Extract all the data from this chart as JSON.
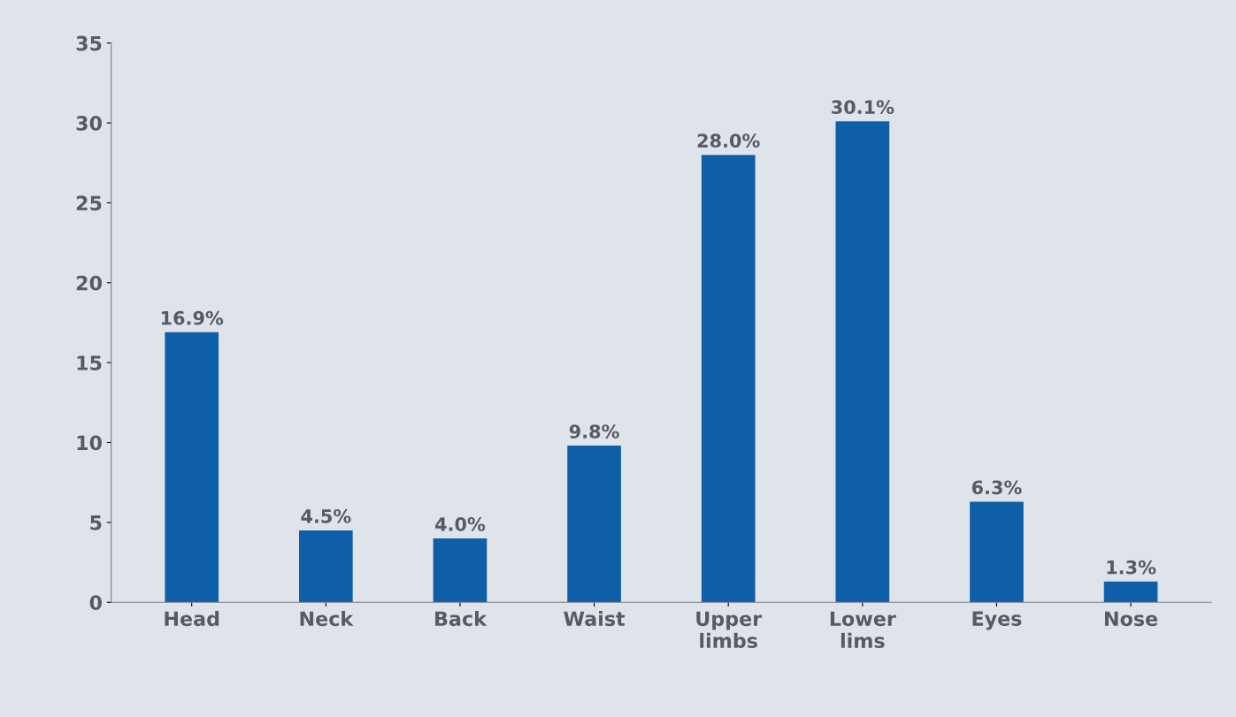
{
  "chart_data": {
    "type": "bar",
    "categories": [
      "Head",
      "Neck",
      "Back",
      "Waist",
      "Upper\nlimbs",
      "Lower\nlims",
      "Eyes",
      "Nose"
    ],
    "values": [
      16.9,
      4.5,
      4.0,
      9.8,
      28.0,
      30.1,
      6.3,
      1.3
    ],
    "value_labels": [
      "16.9%",
      "4.5%",
      "4.0%",
      "9.8%",
      "28.0%",
      "30.1%",
      "6.3%",
      "1.3%"
    ],
    "color": "#0f5ea8",
    "ylim": [
      0,
      35
    ],
    "yticks": [
      0,
      5,
      10,
      15,
      20,
      25,
      30,
      35
    ],
    "grid": false
  }
}
